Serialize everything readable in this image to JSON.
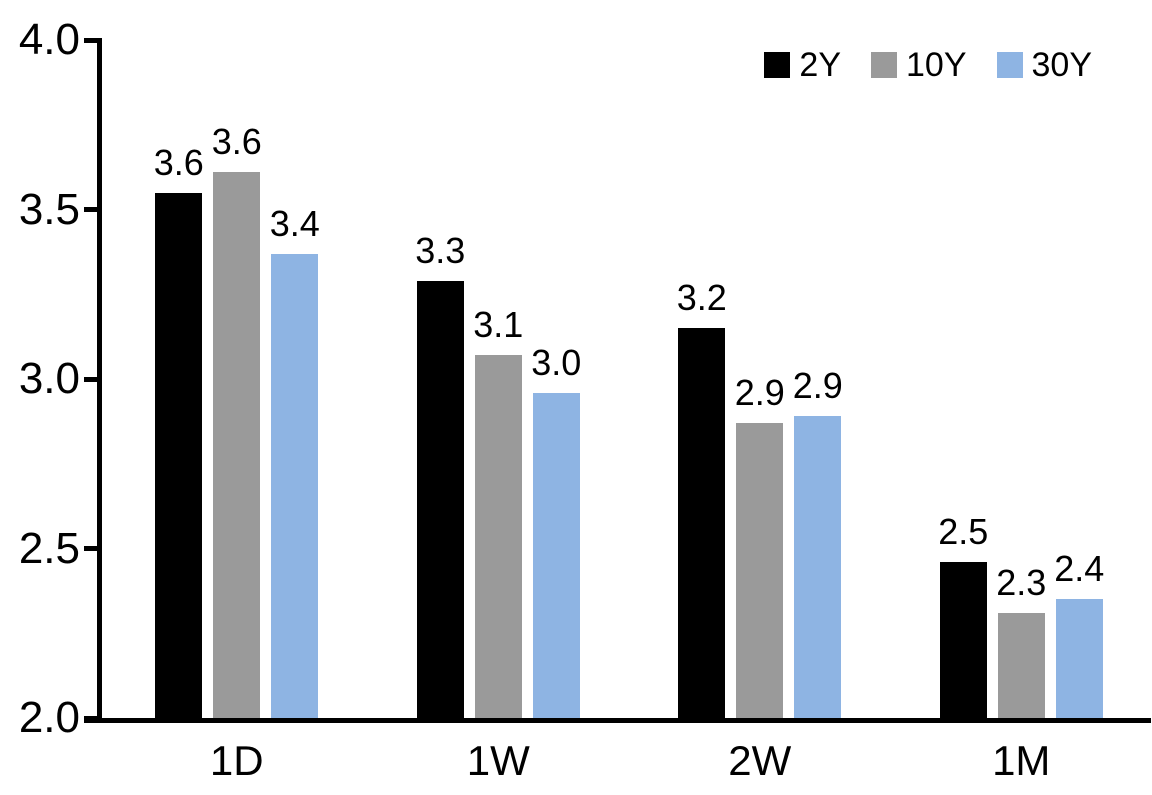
{
  "chart_data": {
    "type": "bar",
    "title": "",
    "xlabel": "",
    "ylabel": "",
    "grid": false,
    "categories": [
      "1D",
      "1W",
      "2W",
      "1M"
    ],
    "series": [
      {
        "name": "2Y",
        "color": "#000000",
        "values": [
          3.55,
          3.29,
          3.15,
          2.46
        ],
        "labels": [
          "3.6",
          "3.3",
          "3.2",
          "2.5"
        ]
      },
      {
        "name": "10Y",
        "color": "#9A9A9A",
        "values": [
          3.61,
          3.07,
          2.87,
          2.31
        ],
        "labels": [
          "3.6",
          "3.1",
          "2.9",
          "2.3"
        ]
      },
      {
        "name": "30Y",
        "color": "#8EB4E3",
        "values": [
          3.37,
          2.96,
          2.89,
          2.35
        ],
        "labels": [
          "3.4",
          "3.0",
          "2.9",
          "2.4"
        ]
      }
    ],
    "y_axis": {
      "min": 2.0,
      "max": 4.0,
      "tick_values": [
        4.0,
        3.5,
        3.0,
        2.5,
        2.0
      ],
      "tick_labels": [
        "4.0",
        "3.5",
        "3.0",
        "2.5",
        "2.0"
      ]
    },
    "legend": {
      "position": "top-right",
      "entries": [
        "2Y",
        "10Y",
        "30Y"
      ]
    }
  }
}
